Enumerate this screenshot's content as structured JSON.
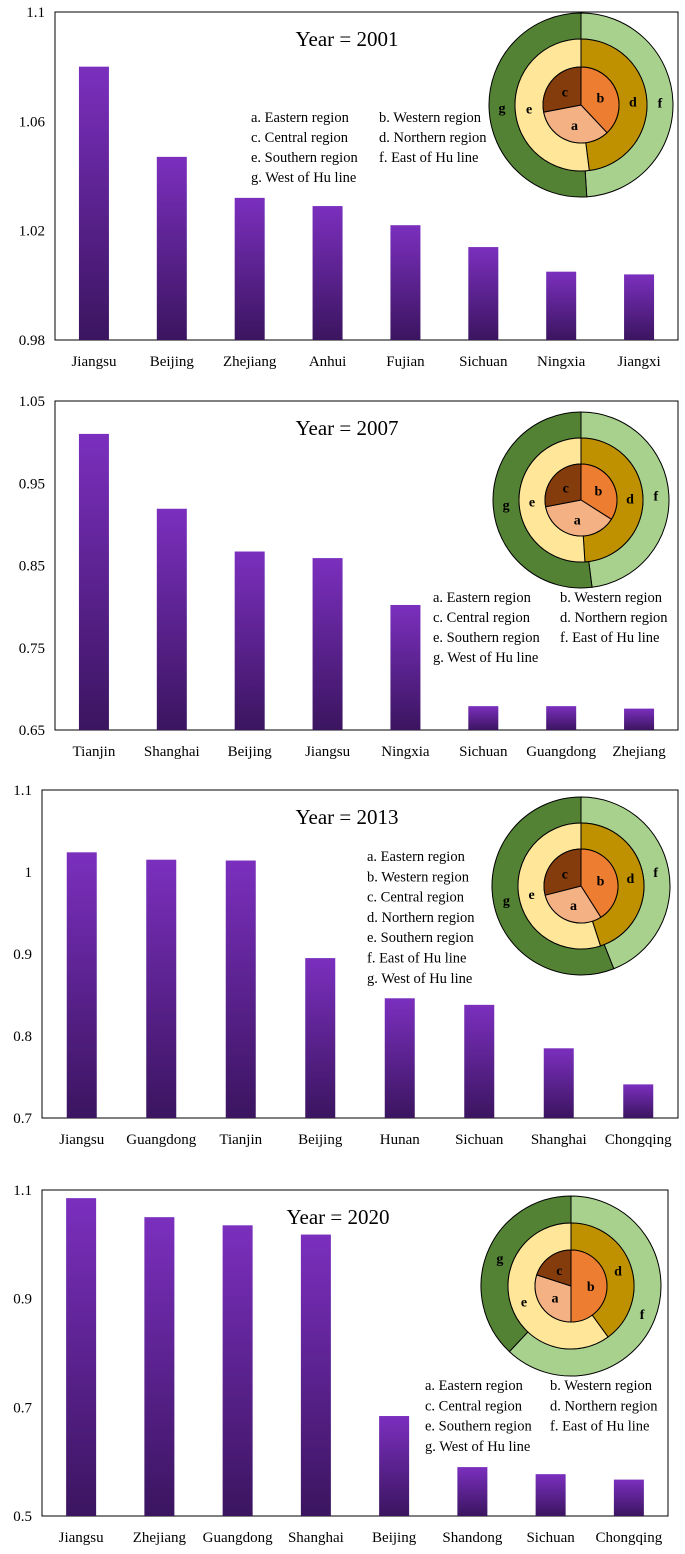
{
  "bar_color_top": "#7B2FBE",
  "bar_color_bottom": "#3B1560",
  "ring_colors": {
    "a": "#F4B183",
    "b": "#ED7D31",
    "c": "#843C0C",
    "d": "#BF9000",
    "e": "#FFE699",
    "f": "#A9D18E",
    "g": "#548235"
  },
  "legend_items": [
    "a. Eastern region",
    "b. Western region",
    "c. Central region",
    "d. Northern region",
    "e. Southern region",
    "f. East of Hu line",
    "g. West of Hu line"
  ],
  "donut_keys": [
    "a",
    "b",
    "c",
    "d",
    "e",
    "f",
    "g"
  ],
  "chart_data": [
    {
      "type": "bar",
      "title": "Year = 2001",
      "categories": [
        "Jiangsu",
        "Beijing",
        "Zhejiang",
        "Anhui",
        "Fujian",
        "Sichuan",
        "Ningxia",
        "Jiangxi"
      ],
      "values": [
        1.08,
        1.047,
        1.032,
        1.029,
        1.022,
        1.014,
        1.005,
        1.004
      ],
      "ylim": [
        0.98,
        1.1
      ],
      "yticks": [
        "1.1",
        "1.06",
        "1.02",
        "0.98"
      ],
      "legend_position": "top-center-right",
      "legend_layout": "two-column",
      "pie": {
        "inner": [
          {
            "key": "a",
            "value": 0.34
          },
          {
            "key": "b",
            "value": 0.38
          },
          {
            "key": "c",
            "value": 0.28
          }
        ],
        "middle": [
          {
            "key": "d",
            "value": 0.48
          },
          {
            "key": "e",
            "value": 0.52
          }
        ],
        "outer": [
          {
            "key": "f",
            "value": 0.49
          },
          {
            "key": "g",
            "value": 0.51
          }
        ]
      }
    },
    {
      "type": "bar",
      "title": "Year = 2007",
      "categories": [
        "Tianjin",
        "Shanghai",
        "Beijing",
        "Jiangsu",
        "Ningxia",
        "Sichuan",
        "Guangdong",
        "Zhejiang"
      ],
      "values": [
        1.01,
        0.919,
        0.867,
        0.859,
        0.802,
        0.679,
        0.679,
        0.676
      ],
      "ylim": [
        0.65,
        1.05
      ],
      "yticks": [
        "1.05",
        "0.95",
        "0.85",
        "0.75",
        "0.65"
      ],
      "legend_position": "bottom-right",
      "legend_layout": "two-column",
      "pie": {
        "inner": [
          {
            "key": "a",
            "value": 0.38
          },
          {
            "key": "b",
            "value": 0.34
          },
          {
            "key": "c",
            "value": 0.28
          }
        ],
        "middle": [
          {
            "key": "d",
            "value": 0.49
          },
          {
            "key": "e",
            "value": 0.51
          }
        ],
        "outer": [
          {
            "key": "f",
            "value": 0.48
          },
          {
            "key": "g",
            "value": 0.52
          }
        ]
      }
    },
    {
      "type": "bar",
      "title": "Year = 2013",
      "categories": [
        "Jiangsu",
        "Guangdong",
        "Tianjin",
        "Beijing",
        "Hunan",
        "Sichuan",
        "Shanghai",
        "Chongqing"
      ],
      "values": [
        1.024,
        1.015,
        1.014,
        0.895,
        0.846,
        0.838,
        0.785,
        0.741
      ],
      "ylim": [
        0.7,
        1.1
      ],
      "yticks": [
        "1.1",
        "1",
        "0.9",
        "0.8",
        "0.7"
      ],
      "legend_position": "center",
      "legend_layout": "one-column",
      "pie": {
        "inner": [
          {
            "key": "a",
            "value": 0.3
          },
          {
            "key": "b",
            "value": 0.41
          },
          {
            "key": "c",
            "value": 0.29
          }
        ],
        "middle": [
          {
            "key": "d",
            "value": 0.45
          },
          {
            "key": "e",
            "value": 0.55
          }
        ],
        "outer": [
          {
            "key": "f",
            "value": 0.44
          },
          {
            "key": "g",
            "value": 0.56
          }
        ]
      }
    },
    {
      "type": "bar",
      "title": "Year = 2020",
      "categories": [
        "Jiangsu",
        "Zhejiang",
        "Guangdong",
        "Shanghai",
        "Beijing",
        "Shandong",
        "Sichuan",
        "Chongqing"
      ],
      "values": [
        1.085,
        1.05,
        1.035,
        1.018,
        0.684,
        0.59,
        0.577,
        0.567
      ],
      "ylim": [
        0.5,
        1.1
      ],
      "yticks": [
        "1.1",
        "0.9",
        "0.7",
        "0.5"
      ],
      "legend_position": "bottom-right",
      "legend_layout": "two-column",
      "pie": {
        "inner": [
          {
            "key": "a",
            "value": 0.3
          },
          {
            "key": "b",
            "value": 0.5
          },
          {
            "key": "c",
            "value": 0.2
          }
        ],
        "middle": [
          {
            "key": "d",
            "value": 0.4
          },
          {
            "key": "e",
            "value": 0.6
          }
        ],
        "outer": [
          {
            "key": "f",
            "value": 0.62
          },
          {
            "key": "g",
            "value": 0.38
          }
        ]
      }
    }
  ]
}
